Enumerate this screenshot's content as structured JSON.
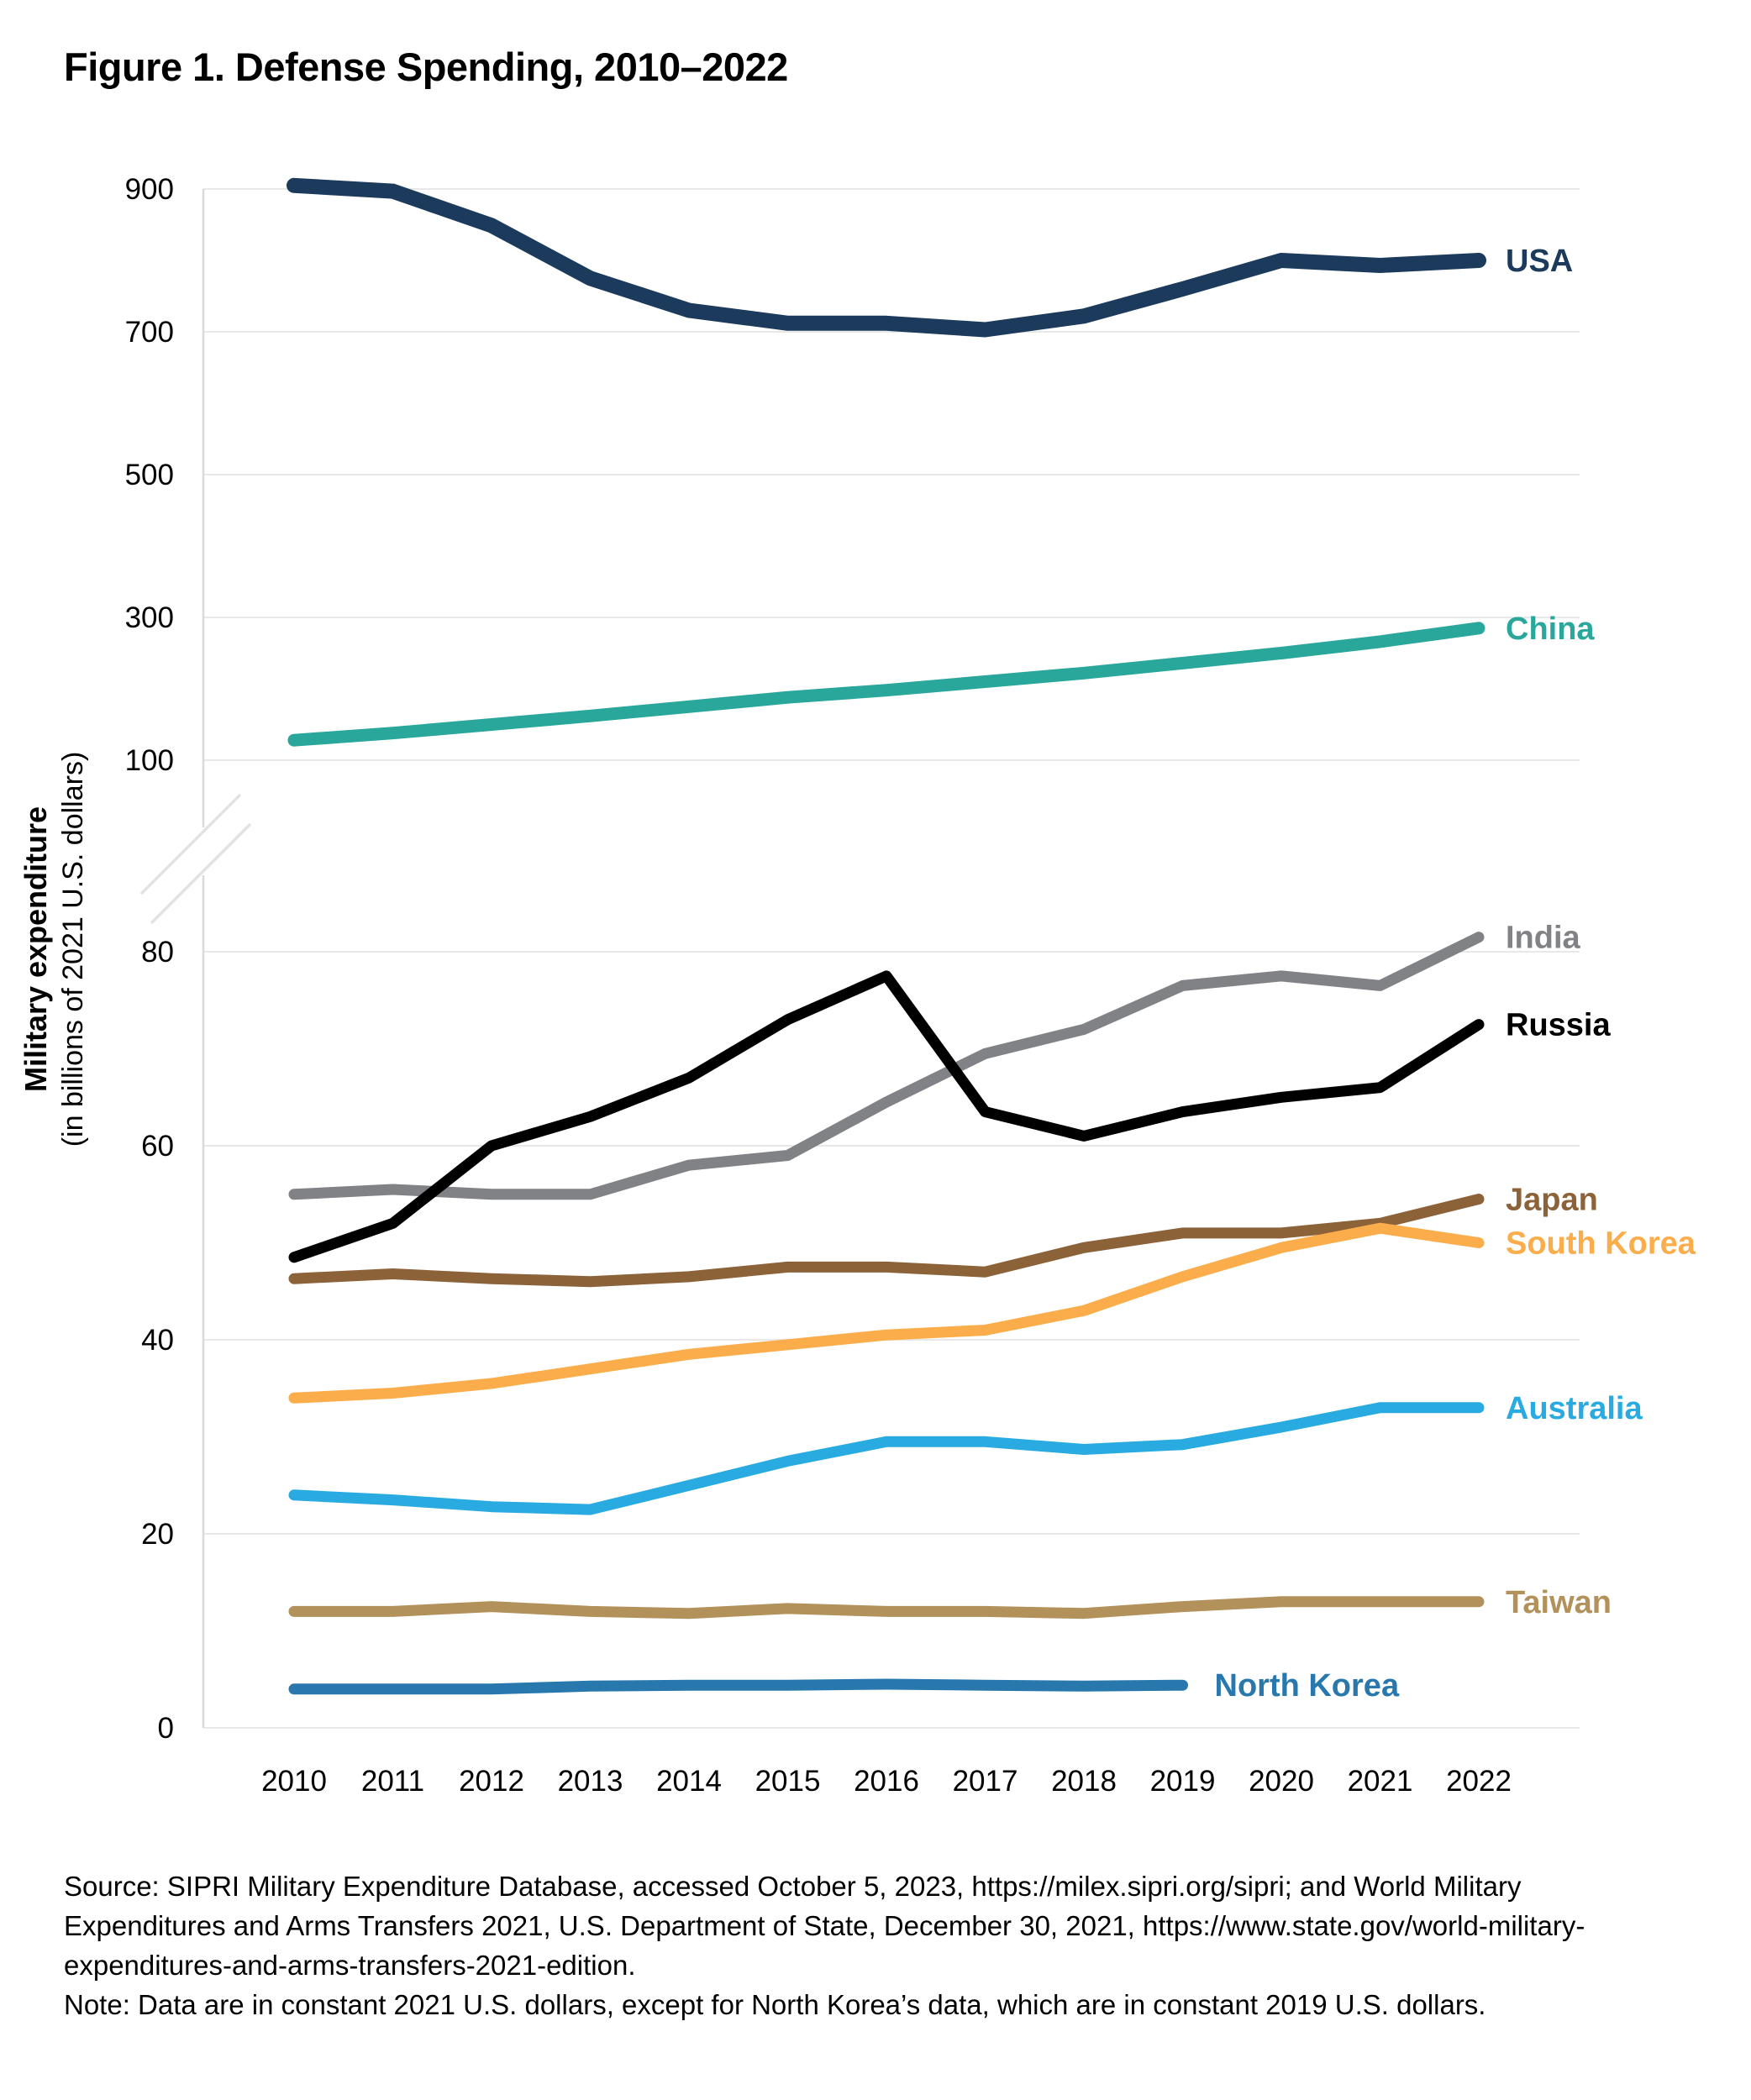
{
  "title": "Figure 1. Defense Spending, 2010–2022",
  "y_axis": {
    "title": "Military expenditure",
    "subtitle": "(in billions of 2021 U.S. dollars)",
    "upper_ticks": [
      900,
      700,
      500,
      300,
      100
    ],
    "lower_ticks": [
      80,
      60,
      40,
      20,
      0
    ]
  },
  "x_axis": {
    "years": [
      2010,
      2011,
      2012,
      2013,
      2014,
      2015,
      2016,
      2017,
      2018,
      2019,
      2020,
      2021,
      2022
    ]
  },
  "source": {
    "lines": [
      "Source: SIPRI Military Expenditure Database, accessed October 5, 2023, https://milex.sipri.org/sipri; and World Military",
      "Expenditures and Arms Transfers 2021, U.S. Department of State, December 30, 2021, https://www.state.gov/world-military-",
      "expenditures-and-arms-transfers-2021-edition.",
      "Note: Data are in constant 2021 U.S. dollars, except for North Korea’s data, which are in constant 2019 U.S. dollars."
    ]
  },
  "chart_data": {
    "type": "line",
    "title": "Figure 1. Defense Spending, 2010–2022",
    "ylabel": "Military expenditure (in billions of 2021 U.S. dollars)",
    "broken_y_axis": true,
    "upper_axis_range": [
      100,
      900
    ],
    "lower_axis_range": [
      0,
      90
    ],
    "grid": true,
    "legend_position": "right-end-labels",
    "x": [
      2010,
      2011,
      2012,
      2013,
      2014,
      2015,
      2016,
      2017,
      2018,
      2019,
      2020,
      2021,
      2022
    ],
    "series": [
      {
        "name": "China",
        "color": "#2AA79B",
        "scale": "upper",
        "width": 15,
        "values": [
          128,
          138,
          150,
          162,
          175,
          188,
          198,
          210,
          222,
          236,
          250,
          266,
          285
        ]
      },
      {
        "name": "USA",
        "color": "#1B3A5C",
        "scale": "upper",
        "width": 18,
        "values": [
          905,
          897,
          849,
          775,
          730,
          712,
          712,
          703,
          722,
          760,
          800,
          793,
          800
        ]
      },
      {
        "name": "India",
        "color": "#808285",
        "scale": "lower",
        "width": 13,
        "values": [
          55,
          55.5,
          55,
          55,
          58,
          59,
          64.5,
          69.5,
          72,
          76.5,
          77.5,
          76.5,
          81.5
        ]
      },
      {
        "name": "Russia",
        "color": "#000000",
        "scale": "lower",
        "width": 13,
        "values": [
          48.5,
          52,
          60,
          63,
          67,
          73,
          77.5,
          63.5,
          61,
          63.5,
          65,
          66,
          72.5
        ]
      },
      {
        "name": "Japan",
        "color": "#8C6239",
        "scale": "lower",
        "width": 13,
        "values": [
          46.3,
          46.8,
          46.3,
          46,
          46.5,
          47.5,
          47.5,
          47,
          49.5,
          51,
          51,
          52,
          54.5
        ]
      },
      {
        "name": "South Korea",
        "color": "#FBAD4B",
        "scale": "lower",
        "width": 13,
        "values": [
          34,
          34.5,
          35.5,
          37,
          38.5,
          39.5,
          40.5,
          41,
          43,
          46.5,
          49.5,
          51.5,
          50
        ]
      },
      {
        "name": "Taiwan",
        "color": "#B3915A",
        "scale": "lower",
        "width": 13,
        "values": [
          12,
          12,
          12.5,
          12,
          11.8,
          12.3,
          12,
          12,
          11.8,
          12.5,
          13,
          13,
          13
        ]
      },
      {
        "name": "Australia",
        "color": "#29ABE2",
        "scale": "lower",
        "width": 13,
        "values": [
          24,
          23.5,
          22.8,
          22.5,
          25,
          27.5,
          29.5,
          29.5,
          28.7,
          29.2,
          31,
          33,
          33
        ]
      },
      {
        "name": "North Korea",
        "color": "#2878AE",
        "scale": "lower",
        "width": 13,
        "values": [
          4,
          4,
          4,
          4.3,
          4.4,
          4.4,
          4.5,
          4.4,
          4.3,
          4.4
        ]
      }
    ]
  },
  "colors": {
    "gridline": "#E8E8E8",
    "axis": "#D9D9D9",
    "break_mark": "#E2E2E2",
    "text": "#000000"
  }
}
